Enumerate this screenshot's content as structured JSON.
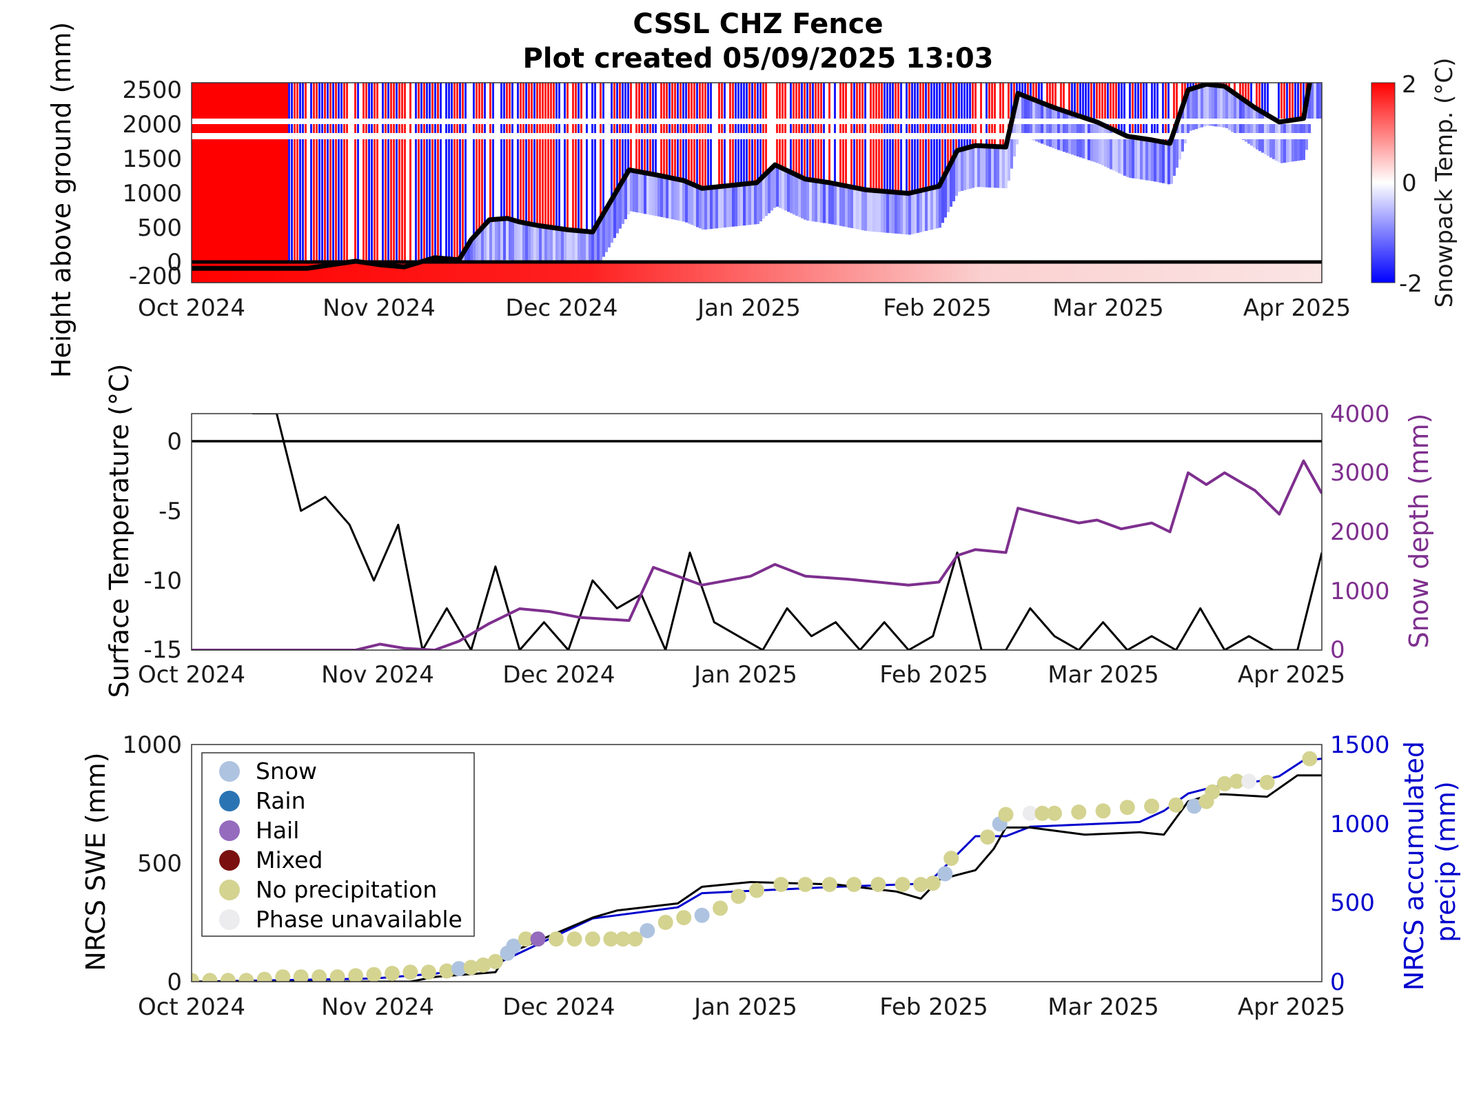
{
  "figure": {
    "title": "CSSL CHZ Fence",
    "subtitle": "Plot created 05/09/2025 13:03"
  },
  "colors": {
    "warm": "#ff0000",
    "cold": "#0000ff",
    "neutral": "#ffffff",
    "snow_depth_line": "#000000",
    "surface_temp_line": "#000000",
    "snow_depth_series": "#7e2f8e",
    "swe_line": "#000000",
    "precip_line": "#0000cd",
    "phase_snow": "#aec3e0",
    "phase_rain": "#2b74b3",
    "phase_hail": "#946bbd",
    "phase_mixed": "#7a1010",
    "phase_none": "#d4d390",
    "phase_unavailable": "#ececee"
  },
  "x_tick_labels": [
    "Oct 2024",
    "Nov 2024",
    "Dec 2024",
    "Jan 2025",
    "Feb 2025",
    "Mar 2025",
    "Apr 2025"
  ],
  "chart_data": [
    {
      "type": "heatmap",
      "ylabel": "Height above ground (mm)",
      "colorbar_label": "Snowpack Temp. (°C)",
      "colorbar_ticks": [
        "2",
        "0",
        "-2"
      ],
      "clim": [
        -2,
        2
      ],
      "ylim": [
        -200,
        2600
      ],
      "y_ticks": [
        "2500",
        "2000",
        "1500",
        "1000",
        "500",
        "0",
        "-200"
      ],
      "x_range": [
        "2024-10-01",
        "2025-04-05"
      ],
      "snow_depth_overlay": {
        "x": [
          "2024-10-01",
          "2024-10-20",
          "2024-10-28",
          "2024-11-01",
          "2024-11-05",
          "2024-11-10",
          "2024-11-14",
          "2024-11-16",
          "2024-11-19",
          "2024-11-22",
          "2024-11-24",
          "2024-11-27",
          "2024-12-02",
          "2024-12-06",
          "2024-12-12",
          "2024-12-17",
          "2024-12-21",
          "2024-12-24",
          "2025-01-02",
          "2025-01-05",
          "2025-01-10",
          "2025-01-14",
          "2025-01-20",
          "2025-01-27",
          "2025-02-01",
          "2025-02-04",
          "2025-02-07",
          "2025-02-12",
          "2025-02-14",
          "2025-02-20",
          "2025-02-27",
          "2025-03-04",
          "2025-03-08",
          "2025-03-11",
          "2025-03-14",
          "2025-03-17",
          "2025-03-20",
          "2025-03-25",
          "2025-03-29",
          "2025-04-02",
          "2025-04-03"
        ],
        "y": [
          0,
          0,
          100,
          50,
          20,
          150,
          120,
          400,
          680,
          700,
          650,
          600,
          540,
          510,
          1380,
          1300,
          1230,
          1120,
          1200,
          1450,
          1250,
          1200,
          1100,
          1050,
          1150,
          1650,
          1720,
          1700,
          2450,
          2250,
          2050,
          1850,
          1800,
          1750,
          2500,
          2580,
          2550,
          2250,
          2050,
          2100,
          2600
        ]
      },
      "ground_line": 0
    },
    {
      "type": "line",
      "ylabel": "Surface Temperature (°C)",
      "y2label": "Snow depth (mm)",
      "ylim": [
        -15,
        2
      ],
      "y_ticks": [
        "0",
        "-5",
        "-10",
        "-15"
      ],
      "y2lim": [
        0,
        4000
      ],
      "y2_ticks": [
        "4000",
        "3000",
        "2000",
        "1000",
        "0"
      ],
      "x_range": [
        "2024-10-01",
        "2025-04-05"
      ],
      "series": [
        {
          "axis": "left",
          "x": [
            "2024-10-11",
            "2024-10-15",
            "2024-10-19",
            "2024-10-23",
            "2024-10-27",
            "2024-10-31",
            "2024-11-04",
            "2024-11-08",
            "2024-11-12",
            "2024-11-16",
            "2024-11-20",
            "2024-11-24",
            "2024-11-28",
            "2024-12-02",
            "2024-12-06",
            "2024-12-10",
            "2024-12-14",
            "2024-12-18",
            "2024-12-22",
            "2024-12-26",
            "2024-12-30",
            "2025-01-03",
            "2025-01-07",
            "2025-01-11",
            "2025-01-15",
            "2025-01-19",
            "2025-01-23",
            "2025-01-27",
            "2025-01-31",
            "2025-02-04",
            "2025-02-08",
            "2025-02-12",
            "2025-02-16",
            "2025-02-20",
            "2025-02-24",
            "2025-02-28",
            "2025-03-04",
            "2025-03-08",
            "2025-03-12",
            "2025-03-16",
            "2025-03-20",
            "2025-03-24",
            "2025-03-28",
            "2025-04-01",
            "2025-04-05"
          ],
          "y": [
            2,
            2,
            -5,
            -4,
            -6,
            -10,
            -6,
            -15,
            -12,
            -15,
            -9,
            -15,
            -13,
            -15,
            -10,
            -12,
            -11,
            -15,
            -8,
            -13,
            -14,
            -15,
            -12,
            -14,
            -13,
            -15,
            -13,
            -15,
            -14,
            -8,
            -15,
            -15,
            -12,
            -14,
            -15,
            -13,
            -15,
            -14,
            -15,
            -12,
            -15,
            -14,
            -15,
            -15,
            -8
          ]
        },
        {
          "axis": "right",
          "x": [
            "2024-10-01",
            "2024-10-28",
            "2024-11-01",
            "2024-11-05",
            "2024-11-10",
            "2024-11-14",
            "2024-11-19",
            "2024-11-24",
            "2024-11-29",
            "2024-12-04",
            "2024-12-12",
            "2024-12-16",
            "2024-12-24",
            "2025-01-01",
            "2025-01-05",
            "2025-01-10",
            "2025-01-17",
            "2025-01-27",
            "2025-02-01",
            "2025-02-04",
            "2025-02-07",
            "2025-02-12",
            "2025-02-14",
            "2025-02-20",
            "2025-02-24",
            "2025-02-27",
            "2025-03-03",
            "2025-03-08",
            "2025-03-11",
            "2025-03-14",
            "2025-03-17",
            "2025-03-20",
            "2025-03-25",
            "2025-03-29",
            "2025-04-02",
            "2025-04-05"
          ],
          "y": [
            0,
            0,
            100,
            30,
            0,
            150,
            450,
            700,
            650,
            550,
            500,
            1400,
            1100,
            1250,
            1450,
            1250,
            1200,
            1100,
            1150,
            1600,
            1700,
            1650,
            2400,
            2250,
            2150,
            2200,
            2050,
            2150,
            2000,
            3000,
            2800,
            3000,
            2700,
            2300,
            3200,
            2650
          ]
        }
      ]
    },
    {
      "type": "scatter",
      "ylabel": "NRCS SWE (mm)",
      "y2label": "NRCS accumulated precip (mm)",
      "ylim": [
        0,
        1000
      ],
      "y_ticks": [
        "1000",
        "500",
        "0"
      ],
      "y2lim": [
        0,
        1500
      ],
      "y2_ticks": [
        "1500",
        "1000",
        "500",
        "0"
      ],
      "x_range": [
        "2024-10-01",
        "2025-04-05"
      ],
      "legend": {
        "placement": "top-left",
        "entries": [
          {
            "label": "Snow",
            "color_key": "phase_snow"
          },
          {
            "label": "Rain",
            "color_key": "phase_rain"
          },
          {
            "label": "Hail",
            "color_key": "phase_hail"
          },
          {
            "label": "Mixed",
            "color_key": "phase_mixed"
          },
          {
            "label": "No precipitation",
            "color_key": "phase_none"
          },
          {
            "label": "Phase unavailable",
            "color_key": "phase_unavailable"
          }
        ]
      },
      "swe": {
        "x": [
          "2024-10-01",
          "2024-10-31",
          "2024-11-06",
          "2024-11-10",
          "2024-11-20",
          "2024-11-22",
          "2024-11-25",
          "2024-12-06",
          "2024-12-10",
          "2024-12-20",
          "2024-12-24",
          "2025-01-01",
          "2025-01-15",
          "2025-01-25",
          "2025-01-29",
          "2025-02-01",
          "2025-02-07",
          "2025-02-10",
          "2025-02-12",
          "2025-02-16",
          "2025-02-25",
          "2025-03-06",
          "2025-03-10",
          "2025-03-14",
          "2025-03-18",
          "2025-03-20",
          "2025-03-27",
          "2025-04-01",
          "2025-04-05"
        ],
        "y": [
          0,
          0,
          0,
          20,
          40,
          120,
          150,
          270,
          300,
          330,
          400,
          420,
          410,
          380,
          350,
          430,
          470,
          560,
          650,
          650,
          620,
          630,
          620,
          760,
          790,
          790,
          780,
          870,
          870
        ]
      },
      "accum_precip": {
        "x": [
          "2024-10-01",
          "2024-10-31",
          "2024-11-10",
          "2024-11-20",
          "2024-11-25",
          "2024-12-06",
          "2024-12-10",
          "2024-12-20",
          "2024-12-24",
          "2025-01-15",
          "2025-01-30",
          "2025-02-01",
          "2025-02-07",
          "2025-02-12",
          "2025-02-16",
          "2025-03-06",
          "2025-03-10",
          "2025-03-14",
          "2025-03-18",
          "2025-03-26",
          "2025-03-29",
          "2025-04-02",
          "2025-04-05"
        ],
        "y": [
          0,
          20,
          50,
          110,
          200,
          400,
          420,
          470,
          560,
          600,
          620,
          690,
          920,
          920,
          980,
          1010,
          1080,
          1190,
          1230,
          1270,
          1300,
          1400,
          1410
        ]
      },
      "phase_points": {
        "x": [
          "2024-10-01",
          "2024-10-04",
          "2024-10-07",
          "2024-10-10",
          "2024-10-13",
          "2024-10-16",
          "2024-10-19",
          "2024-10-22",
          "2024-10-25",
          "2024-10-28",
          "2024-10-31",
          "2024-11-03",
          "2024-11-06",
          "2024-11-09",
          "2024-11-12",
          "2024-11-14",
          "2024-11-16",
          "2024-11-18",
          "2024-11-20",
          "2024-11-22",
          "2024-11-23",
          "2024-11-25",
          "2024-11-27",
          "2024-11-30",
          "2024-12-03",
          "2024-12-06",
          "2024-12-09",
          "2024-12-11",
          "2024-12-13",
          "2024-12-15",
          "2024-12-18",
          "2024-12-21",
          "2024-12-24",
          "2024-12-27",
          "2024-12-30",
          "2025-01-02",
          "2025-01-06",
          "2025-01-10",
          "2025-01-14",
          "2025-01-18",
          "2025-01-22",
          "2025-01-26",
          "2025-01-29",
          "2025-01-31",
          "2025-02-02",
          "2025-02-03",
          "2025-02-09",
          "2025-02-11",
          "2025-02-12",
          "2025-02-16",
          "2025-02-18",
          "2025-02-20",
          "2025-02-24",
          "2025-02-28",
          "2025-03-04",
          "2025-03-08",
          "2025-03-12",
          "2025-03-15",
          "2025-03-17",
          "2025-03-18",
          "2025-03-20",
          "2025-03-22",
          "2025-03-24",
          "2025-03-27",
          "2025-04-03"
        ],
        "y": [
          5,
          5,
          5,
          5,
          10,
          20,
          20,
          20,
          20,
          25,
          30,
          35,
          40,
          40,
          45,
          55,
          60,
          70,
          85,
          120,
          150,
          180,
          180,
          180,
          180,
          180,
          180,
          180,
          180,
          215,
          250,
          270,
          280,
          310,
          360,
          385,
          410,
          410,
          410,
          410,
          410,
          410,
          410,
          415,
          455,
          520,
          610,
          665,
          705,
          710,
          710,
          710,
          715,
          720,
          735,
          740,
          745,
          740,
          760,
          800,
          835,
          845,
          845,
          840,
          940
        ],
        "phase": [
          "none",
          "none",
          "none",
          "none",
          "none",
          "none",
          "none",
          "none",
          "none",
          "none",
          "none",
          "none",
          "none",
          "none",
          "none",
          "snow",
          "none",
          "none",
          "none",
          "snow",
          "snow",
          "none",
          "hail",
          "none",
          "none",
          "none",
          "none",
          "none",
          "none",
          "snow",
          "none",
          "none",
          "snow",
          "none",
          "none",
          "none",
          "none",
          "none",
          "none",
          "none",
          "none",
          "none",
          "none",
          "none",
          "snow",
          "none",
          "none",
          "snow",
          "none",
          "unavailable",
          "none",
          "none",
          "none",
          "none",
          "none",
          "none",
          "none",
          "snow",
          "none",
          "none",
          "none",
          "none",
          "unavailable",
          "none",
          "none"
        ]
      }
    }
  ]
}
